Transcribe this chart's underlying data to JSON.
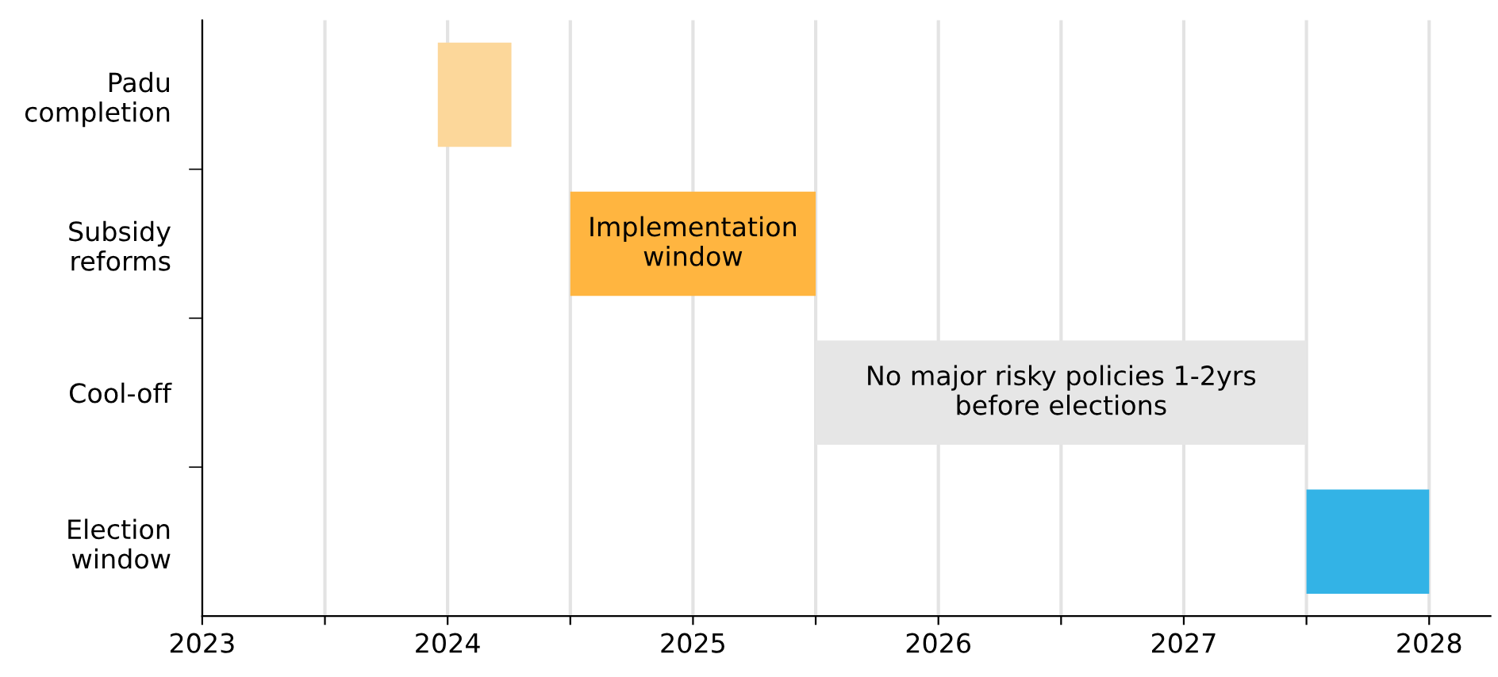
{
  "chart_data": {
    "type": "bar",
    "orientation": "horizontal",
    "categories": [
      "Padu\ncompletion",
      "Subsidy\nreforms",
      "Cool-off",
      "Election\nwindow"
    ],
    "base": [
      2023.96,
      2024.5,
      2025.5,
      2027.5
    ],
    "values": [
      0.3,
      1.0,
      2.0,
      0.5
    ],
    "colors": [
      "#fcd79a",
      "#ffb540",
      "#e6e6e6",
      "#33b3e6"
    ],
    "xlim": [
      2023,
      2028.25
    ],
    "xticks": [
      2023,
      {
        "value": 2023.5,
        "label": null
      },
      2024,
      {
        "value": 2024.5,
        "label": null
      },
      2025,
      {
        "value": 2025.5,
        "label": null
      },
      2026,
      {
        "value": 2026.5,
        "label": null
      },
      2027,
      {
        "value": 2027.5,
        "label": null
      },
      2028
    ],
    "grid": "x",
    "value_labels": [
      null,
      "Implementation\nwindow",
      "No major risky policies 1-2yrs\nbefore elections",
      null
    ]
  }
}
